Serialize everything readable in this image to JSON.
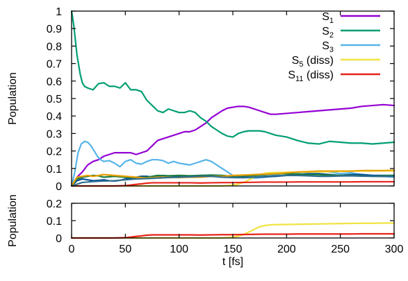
{
  "chart_data": [
    {
      "type": "line",
      "panel": "top",
      "xlabel": "",
      "ylabel": "Population",
      "xlim": [
        0,
        300
      ],
      "ylim": [
        0,
        1
      ],
      "xticks": [
        "0",
        "50",
        "100",
        "150",
        "200",
        "250",
        "300"
      ],
      "yticks": [
        "0",
        "0.1",
        "0.2",
        "0.3",
        "0.4",
        "0.5",
        "0.6",
        "0.7",
        "0.8",
        "0.9",
        "1"
      ],
      "show_xtick_labels": false,
      "grid": false,
      "legend_position": "top-right",
      "series": [
        {
          "name": "S1",
          "label_base": "S",
          "label_sub": "1",
          "label_suffix": "",
          "color": "#9400d3",
          "x": [
            0,
            5,
            10,
            15,
            20,
            25,
            30,
            35,
            40,
            45,
            50,
            55,
            60,
            65,
            70,
            75,
            80,
            85,
            90,
            95,
            100,
            105,
            110,
            115,
            120,
            125,
            130,
            135,
            140,
            145,
            150,
            155,
            160,
            165,
            170,
            175,
            180,
            185,
            190,
            200,
            210,
            220,
            230,
            240,
            250,
            260,
            270,
            280,
            290,
            300
          ],
          "y": [
            0.0,
            0.05,
            0.08,
            0.12,
            0.14,
            0.15,
            0.17,
            0.18,
            0.19,
            0.19,
            0.19,
            0.19,
            0.18,
            0.19,
            0.2,
            0.23,
            0.26,
            0.27,
            0.28,
            0.29,
            0.3,
            0.31,
            0.31,
            0.32,
            0.34,
            0.36,
            0.39,
            0.41,
            0.43,
            0.445,
            0.45,
            0.455,
            0.455,
            0.45,
            0.44,
            0.43,
            0.42,
            0.41,
            0.41,
            0.415,
            0.42,
            0.425,
            0.43,
            0.435,
            0.44,
            0.445,
            0.455,
            0.46,
            0.465,
            0.46
          ]
        },
        {
          "name": "S2",
          "label_base": "S",
          "label_sub": "2",
          "label_suffix": "",
          "color": "#009e73",
          "x": [
            0,
            2,
            5,
            8,
            10,
            12,
            15,
            20,
            25,
            30,
            35,
            40,
            45,
            50,
            55,
            60,
            65,
            70,
            75,
            80,
            85,
            90,
            95,
            100,
            105,
            110,
            115,
            120,
            125,
            130,
            135,
            140,
            145,
            150,
            155,
            160,
            165,
            170,
            175,
            180,
            185,
            190,
            200,
            210,
            220,
            230,
            240,
            250,
            260,
            270,
            280,
            290,
            300
          ],
          "y": [
            1.0,
            0.92,
            0.75,
            0.64,
            0.59,
            0.57,
            0.56,
            0.55,
            0.585,
            0.59,
            0.57,
            0.57,
            0.56,
            0.59,
            0.55,
            0.55,
            0.54,
            0.49,
            0.46,
            0.43,
            0.42,
            0.44,
            0.43,
            0.42,
            0.42,
            0.43,
            0.42,
            0.39,
            0.37,
            0.34,
            0.32,
            0.3,
            0.285,
            0.28,
            0.3,
            0.31,
            0.315,
            0.315,
            0.315,
            0.31,
            0.3,
            0.29,
            0.28,
            0.26,
            0.245,
            0.24,
            0.255,
            0.25,
            0.245,
            0.245,
            0.24,
            0.245,
            0.25
          ]
        },
        {
          "name": "S3",
          "label_base": "S",
          "label_sub": "3",
          "label_suffix": "",
          "color": "#56b4e9",
          "x": [
            0,
            3,
            6,
            9,
            12,
            15,
            18,
            21,
            24,
            27,
            30,
            35,
            40,
            45,
            50,
            55,
            60,
            65,
            70,
            75,
            80,
            85,
            90,
            95,
            100,
            105,
            110,
            115,
            120,
            125,
            130,
            135,
            140,
            145,
            150,
            160,
            170,
            180,
            190,
            200,
            210,
            220,
            230,
            240,
            250,
            260,
            270,
            280,
            290,
            300
          ],
          "y": [
            0.0,
            0.08,
            0.19,
            0.24,
            0.255,
            0.25,
            0.23,
            0.2,
            0.17,
            0.15,
            0.14,
            0.145,
            0.13,
            0.11,
            0.14,
            0.15,
            0.13,
            0.125,
            0.14,
            0.15,
            0.15,
            0.145,
            0.13,
            0.14,
            0.13,
            0.125,
            0.12,
            0.13,
            0.14,
            0.15,
            0.14,
            0.12,
            0.1,
            0.08,
            0.06,
            0.05,
            0.045,
            0.05,
            0.065,
            0.075,
            0.075,
            0.08,
            0.085,
            0.08,
            0.07,
            0.075,
            0.065,
            0.06,
            0.055,
            0.05
          ]
        },
        {
          "name": "S5 (diss)",
          "label_base": "S",
          "label_sub": "5",
          "label_suffix": " (diss)",
          "color": "#f0e442",
          "x": [
            0,
            10,
            20,
            30,
            40,
            50,
            60,
            70,
            80,
            90,
            100,
            110,
            120,
            130,
            140,
            150,
            155,
            160,
            165,
            170,
            175,
            180,
            185,
            190,
            200,
            210,
            220,
            230,
            240,
            250,
            260,
            270,
            280,
            290,
            300
          ],
          "y": [
            0.0,
            0.0,
            0.0,
            0.0,
            0.0,
            0.0,
            0.0,
            0.0,
            0.0,
            0.0,
            0.0,
            0.0,
            0.0,
            0.0,
            0.0,
            0.005,
            0.01,
            0.02,
            0.035,
            0.05,
            0.065,
            0.072,
            0.076,
            0.077,
            0.078,
            0.079,
            0.08,
            0.081,
            0.082,
            0.083,
            0.084,
            0.085,
            0.085,
            0.086,
            0.086
          ]
        },
        {
          "name": "S11 (diss)",
          "label_base": "S",
          "label_sub": "11",
          "label_suffix": " (diss)",
          "color": "#e8231a",
          "x": [
            0,
            10,
            20,
            30,
            40,
            50,
            55,
            60,
            65,
            70,
            75,
            80,
            90,
            100,
            110,
            120,
            130,
            140,
            150,
            160,
            170,
            180,
            190,
            200,
            210,
            220,
            230,
            240,
            250,
            260,
            270,
            280,
            290,
            300
          ],
          "y": [
            0.0,
            0.0,
            0.0,
            0.0,
            0.0,
            0.002,
            0.005,
            0.009,
            0.012,
            0.016,
            0.018,
            0.018,
            0.018,
            0.018,
            0.018,
            0.017,
            0.018,
            0.019,
            0.019,
            0.02,
            0.021,
            0.022,
            0.022,
            0.022,
            0.023,
            0.023,
            0.023,
            0.023,
            0.023,
            0.023,
            0.024,
            0.024,
            0.024,
            0.024
          ]
        },
        {
          "name": "",
          "label_base": "",
          "label_sub": "",
          "label_suffix": "",
          "color": "#004c99",
          "legend": false,
          "x": [
            0,
            5,
            10,
            15,
            20,
            25,
            30,
            35,
            40,
            45,
            50,
            55,
            60,
            65,
            70,
            75,
            80,
            85,
            90,
            100,
            110,
            120,
            130,
            140,
            150,
            160,
            170,
            180,
            190,
            200,
            210,
            220,
            230,
            240,
            250,
            260,
            270,
            280,
            290,
            300
          ],
          "y": [
            0.0,
            0.03,
            0.04,
            0.035,
            0.03,
            0.032,
            0.035,
            0.03,
            0.028,
            0.032,
            0.04,
            0.045,
            0.05,
            0.055,
            0.055,
            0.05,
            0.055,
            0.06,
            0.055,
            0.055,
            0.055,
            0.06,
            0.058,
            0.055,
            0.05,
            0.05,
            0.05,
            0.052,
            0.055,
            0.06,
            0.065,
            0.07,
            0.07,
            0.065,
            0.06,
            0.065,
            0.065,
            0.06,
            0.06,
            0.06
          ]
        },
        {
          "name": "",
          "label_base": "",
          "label_sub": "",
          "label_suffix": "",
          "color": "#1a7a40",
          "legend": false,
          "x": [
            0,
            5,
            10,
            15,
            20,
            25,
            30,
            40,
            50,
            60,
            70,
            80,
            90,
            100,
            110,
            120,
            130,
            140,
            150,
            160,
            170,
            180,
            190,
            200,
            210,
            220,
            230,
            240,
            250,
            260,
            270,
            280,
            290,
            300
          ],
          "y": [
            0.0,
            0.04,
            0.05,
            0.055,
            0.06,
            0.058,
            0.05,
            0.055,
            0.05,
            0.048,
            0.05,
            0.06,
            0.058,
            0.06,
            0.058,
            0.06,
            0.062,
            0.06,
            0.055,
            0.058,
            0.06,
            0.065,
            0.07,
            0.07,
            0.068,
            0.065,
            0.065,
            0.062,
            0.06,
            0.06,
            0.058,
            0.055,
            0.058,
            0.06
          ]
        },
        {
          "name": "",
          "label_base": "",
          "label_sub": "",
          "label_suffix": "",
          "color": "#e69f00",
          "legend": false,
          "x": [
            0,
            5,
            10,
            15,
            20,
            25,
            30,
            40,
            50,
            60,
            70,
            80,
            90,
            100,
            110,
            120,
            130,
            140,
            150,
            160,
            170,
            180,
            190,
            200,
            210,
            220,
            230,
            240,
            250,
            260,
            270,
            280,
            290,
            300
          ],
          "y": [
            0.0,
            0.05,
            0.055,
            0.06,
            0.055,
            0.06,
            0.065,
            0.06,
            0.055,
            0.05,
            0.045,
            0.05,
            0.05,
            0.048,
            0.05,
            0.05,
            0.055,
            0.055,
            0.06,
            0.062,
            0.065,
            0.068,
            0.07,
            0.075,
            0.08,
            0.082,
            0.085,
            0.085,
            0.085,
            0.085,
            0.088,
            0.088,
            0.088,
            0.09
          ]
        },
        {
          "name": "",
          "label_base": "",
          "label_sub": "",
          "label_suffix": "",
          "color": "#2f6f8f",
          "legend": false,
          "x": [
            0,
            10,
            20,
            30,
            40,
            50,
            60,
            70,
            80,
            90,
            100,
            110,
            120,
            130,
            140,
            150,
            160,
            170,
            180,
            190,
            200,
            210,
            220,
            230,
            240,
            250,
            260,
            270,
            280,
            290,
            300
          ],
          "y": [
            0.0,
            0.02,
            0.025,
            0.028,
            0.03,
            0.035,
            0.04,
            0.042,
            0.045,
            0.048,
            0.05,
            0.052,
            0.055,
            0.055,
            0.05,
            0.048,
            0.047,
            0.05,
            0.055,
            0.058,
            0.06,
            0.06,
            0.058,
            0.055,
            0.055,
            0.057,
            0.058,
            0.056,
            0.055,
            0.054,
            0.055
          ]
        }
      ]
    },
    {
      "type": "line",
      "panel": "bottom",
      "xlabel": "t [fs]",
      "ylabel": "Population",
      "xlim": [
        0,
        300
      ],
      "ylim": [
        0,
        0.2
      ],
      "xticks": [
        "0",
        "50",
        "100",
        "150",
        "200",
        "250",
        "300"
      ],
      "yticks": [
        "0",
        "0.1",
        "0.2"
      ],
      "show_xtick_labels": true,
      "grid": false,
      "series": [
        {
          "name": "S5 (diss)",
          "color": "#f0e442",
          "x": [
            0,
            10,
            20,
            30,
            40,
            50,
            60,
            70,
            80,
            90,
            100,
            110,
            120,
            130,
            140,
            150,
            155,
            160,
            165,
            170,
            175,
            180,
            185,
            190,
            200,
            210,
            220,
            230,
            240,
            250,
            260,
            270,
            280,
            290,
            300
          ],
          "y": [
            0.0,
            0.0,
            0.0,
            0.0,
            0.0,
            0.0,
            0.0,
            0.0,
            0.0,
            0.0,
            0.0,
            0.0,
            0.0,
            0.0,
            0.0,
            0.005,
            0.01,
            0.02,
            0.035,
            0.05,
            0.065,
            0.072,
            0.076,
            0.077,
            0.078,
            0.079,
            0.08,
            0.081,
            0.082,
            0.083,
            0.084,
            0.085,
            0.085,
            0.086,
            0.086
          ]
        },
        {
          "name": "S11 (diss)",
          "color": "#e8231a",
          "x": [
            0,
            10,
            20,
            30,
            40,
            50,
            55,
            60,
            65,
            70,
            75,
            80,
            90,
            100,
            110,
            120,
            130,
            140,
            150,
            160,
            170,
            180,
            190,
            200,
            210,
            220,
            230,
            240,
            250,
            260,
            270,
            280,
            290,
            300
          ],
          "y": [
            0.0,
            0.0,
            0.0,
            0.0,
            0.0,
            0.002,
            0.005,
            0.009,
            0.012,
            0.016,
            0.018,
            0.018,
            0.018,
            0.018,
            0.018,
            0.017,
            0.018,
            0.019,
            0.019,
            0.02,
            0.021,
            0.022,
            0.022,
            0.022,
            0.023,
            0.023,
            0.023,
            0.023,
            0.023,
            0.023,
            0.024,
            0.024,
            0.024,
            0.024
          ]
        }
      ]
    }
  ]
}
